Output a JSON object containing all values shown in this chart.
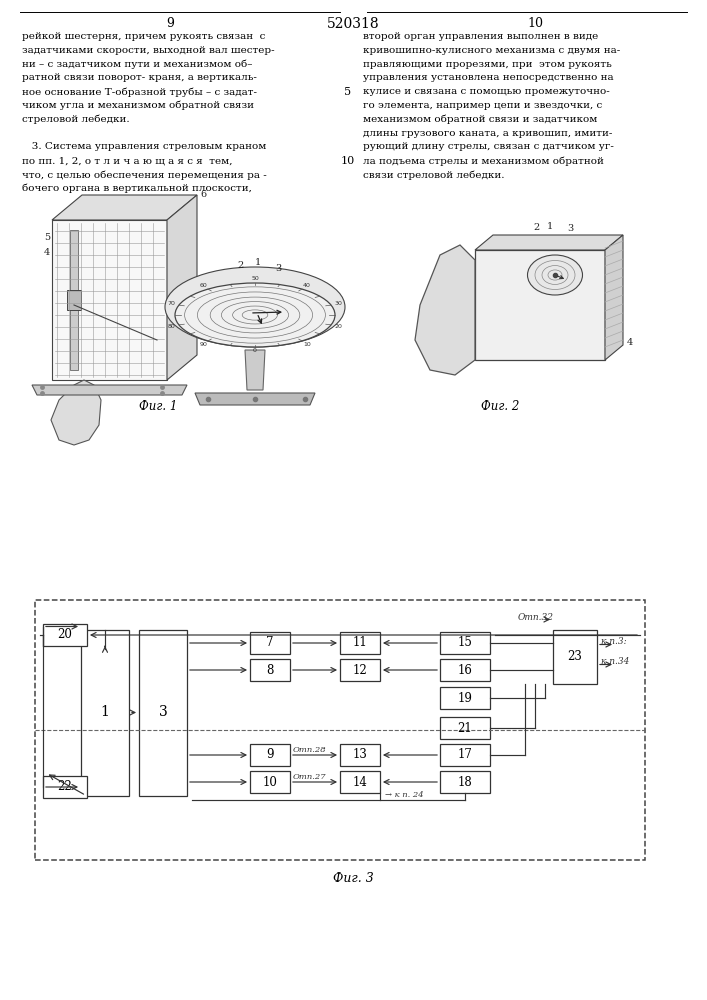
{
  "page_title": "520318",
  "page_left": "9",
  "page_right": "10",
  "left_text_lines": [
    "рейкой шестерня, причем рукоять связан  с",
    "задатчиками скорости, выходной вал шестер-",
    "ни – с задатчиком пути и механизмом об–",
    "ратной связи поворот- краня, а вертикаль-",
    "ное основание Т-образной трубы – с задат-",
    "чиком угла и механизмом обратной связи",
    "стреловой лебедки.",
    "",
    "   3. Система управления стреловым краном",
    "по пп. 1, 2, о т л и ч а ю щ а я с я  тем,",
    "что, с целью обеспечения перемещения ра -",
    "бочего органа в вертикальной плоскости,"
  ],
  "right_text_lines": [
    "второй орган управления выполнен в виде",
    "кривошипно-кулисного механизма с двумя на-",
    "правляющими прорезями, при  этом рукоять",
    "управления установлена непосредственно на",
    "кулисе и связана с помощью промежуточно-",
    "го элемента, например цепи и звездочки, с",
    "механизмом обратной связи и задатчиком",
    "длины грузового каната, а кривошип, имити-",
    "рующий длину стрелы, связан с датчиком уг-",
    "ла подъема стрелы и механизмом обратной",
    "связи стреловой лебедки."
  ],
  "fig1_caption": "Фиг. 1",
  "fig2_caption": "Фиг. 2",
  "fig3_caption": "Фиг. 3",
  "bg_color": "#ffffff",
  "text_color": "#000000",
  "line_num_5": "5",
  "line_num_10": "10"
}
